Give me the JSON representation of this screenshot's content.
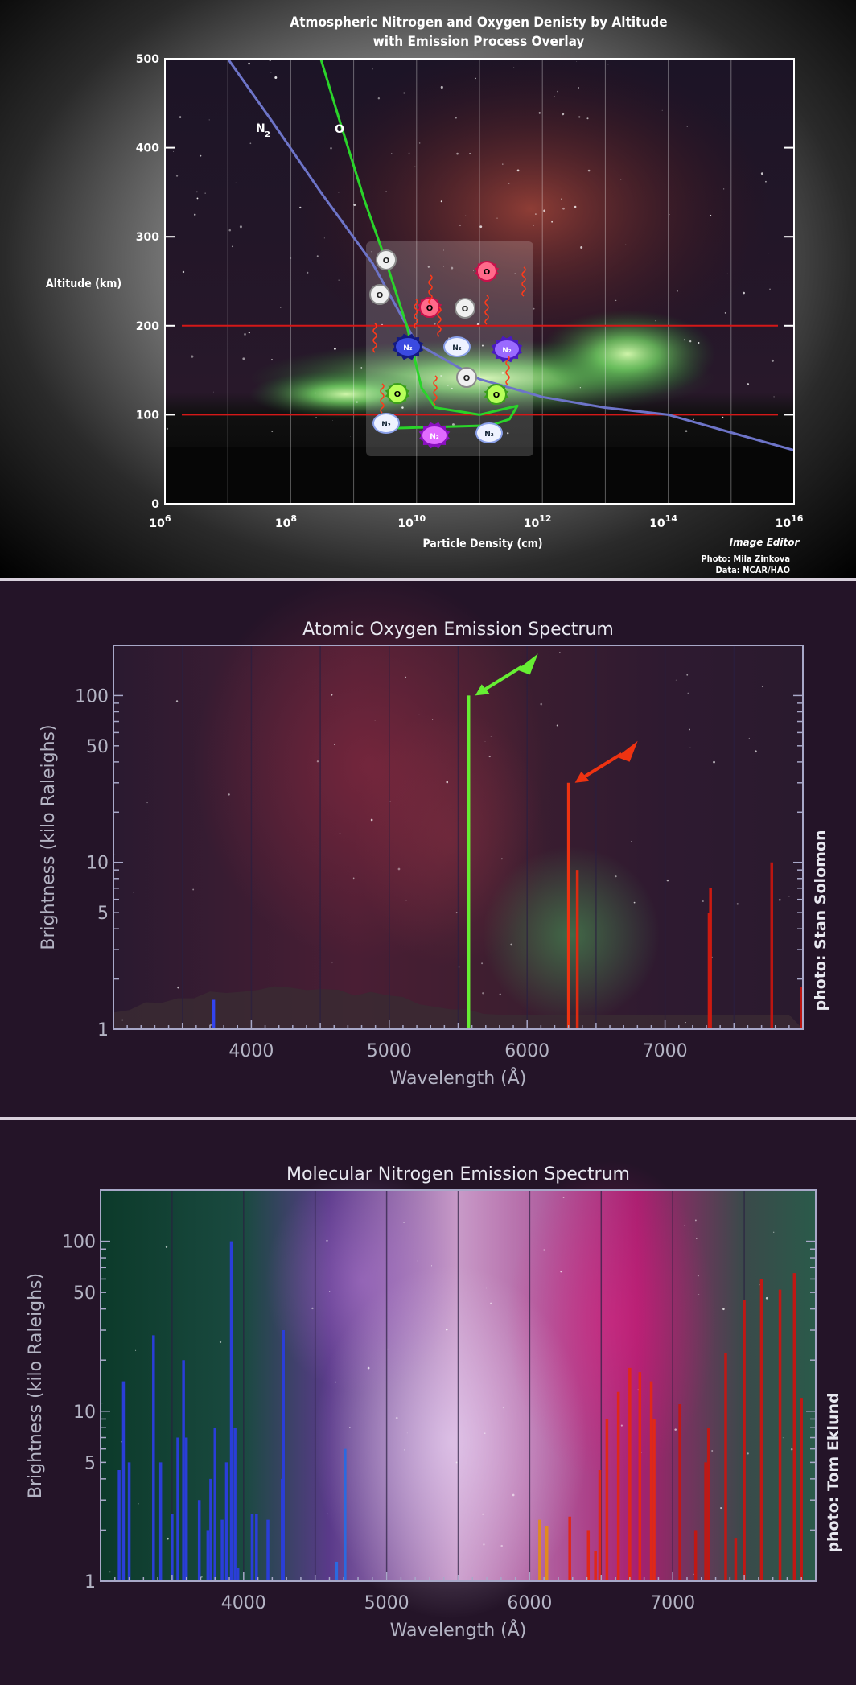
{
  "chart_data": [
    {
      "type": "line",
      "title": "Atmospheric Nitrogen and Oxygen Denisty by Altitude",
      "subtitle": "with Emission Process Overlay",
      "xlabel": "Particle Density (cm)",
      "ylabel": "Altitude (km)",
      "x_scale": "log",
      "xlim": [
        1000000.0,
        1e+16
      ],
      "ylim": [
        0,
        500
      ],
      "x_ticks": [
        {
          "base": "10",
          "exp": "6"
        },
        {
          "base": "10",
          "exp": "8"
        },
        {
          "base": "10",
          "exp": "10"
        },
        {
          "base": "10",
          "exp": "12"
        },
        {
          "base": "10",
          "exp": "14"
        },
        {
          "base": "10",
          "exp": "16"
        }
      ],
      "y_ticks": [
        "0",
        "100",
        "200",
        "300",
        "400",
        "500"
      ],
      "grid": true,
      "reference_lines_y": [
        100,
        200
      ],
      "series": [
        {
          "name": "N2",
          "color": "#6d74c8",
          "points": [
            [
              10000000.0,
              500
            ],
            [
              50000000.0,
              430
            ],
            [
              300000000.0,
              350
            ],
            [
              2000000000.0,
              270
            ],
            [
              10000000000.0,
              180
            ],
            [
              100000000000.0,
              140
            ],
            [
              1000000000000.0,
              120
            ],
            [
              10000000000000.0,
              108
            ],
            [
              100000000000000.0,
              100
            ],
            [
              1000000000000000.0,
              80
            ],
            [
              1e+16,
              60
            ]
          ]
        },
        {
          "name": "O",
          "color": "#2ad42a",
          "points": [
            [
              300000000.0,
              500
            ],
            [
              600000000.0,
              430
            ],
            [
              1500000000.0,
              340
            ],
            [
              3000000000.0,
              280
            ],
            [
              7000000000.0,
              200
            ],
            [
              12000000000.0,
              130
            ],
            [
              20000000000.0,
              108
            ],
            [
              100000000000.0,
              100
            ],
            [
              400000000000.0,
              110
            ],
            [
              300000000000.0,
              95
            ],
            [
              150000000000.0,
              88
            ],
            [
              5000000000.0,
              85
            ]
          ]
        }
      ],
      "overlay_particles": [
        "O",
        "O",
        "O",
        "O",
        "O",
        "O",
        "O",
        "N₂",
        "N₂",
        "N₂",
        "N₂",
        "N₂",
        "N₂"
      ],
      "credits": [
        "Photo: Mila Zinkova",
        "Data: NCAR/HAO"
      ],
      "signature": "Image Editor"
    },
    {
      "type": "bar",
      "title": "Atomic Oxygen Emission Spectrum",
      "xlabel": "Wavelength (Å)",
      "ylabel": "Brightness (kilo Raleighs)",
      "y_scale": "log",
      "xlim": [
        3000,
        8000
      ],
      "ylim": [
        1,
        200
      ],
      "x_ticks": [
        "4000",
        "5000",
        "6000",
        "7000"
      ],
      "y_ticks": [
        "1",
        "5",
        "10",
        "50",
        "100"
      ],
      "grid": true,
      "credit": "photo: Stan Solomon",
      "lines": [
        {
          "x": 3727,
          "y": 1.5,
          "color": "#3344ee"
        },
        {
          "x": 5577,
          "y": 100,
          "color": "#66ee33",
          "arrow": true
        },
        {
          "x": 6300,
          "y": 30,
          "color": "#ee3311",
          "arrow": true
        },
        {
          "x": 6364,
          "y": 9,
          "color": "#dd2a11"
        },
        {
          "x": 7320,
          "y": 5,
          "color": "#cc1a11"
        },
        {
          "x": 7330,
          "y": 7,
          "color": "#cc1a11"
        },
        {
          "x": 7774,
          "y": 10,
          "color": "#bb1511"
        },
        {
          "x": 7990,
          "y": 1.8,
          "color": "#bb1511"
        }
      ]
    },
    {
      "type": "bar",
      "title": "Molecular Nitrogen Emission Spectrum",
      "xlabel": "Wavelength (Å)",
      "ylabel": "Brightness (kilo Raleighs)",
      "y_scale": "log",
      "xlim": [
        3000,
        8000
      ],
      "ylim": [
        1,
        200
      ],
      "x_ticks": [
        "4000",
        "5000",
        "6000",
        "7000"
      ],
      "y_ticks": [
        "1",
        "5",
        "10",
        "50",
        "100"
      ],
      "grid": true,
      "credit": "photo: Tom Eklund",
      "lines": [
        {
          "x": 3130,
          "y": 4.5,
          "color": "#2a3ed8"
        },
        {
          "x": 3160,
          "y": 15,
          "color": "#2a3ed8"
        },
        {
          "x": 3200,
          "y": 5,
          "color": "#2a3ed8"
        },
        {
          "x": 3370,
          "y": 28,
          "color": "#2a3ed8"
        },
        {
          "x": 3420,
          "y": 5,
          "color": "#2a3ed8"
        },
        {
          "x": 3500,
          "y": 2.5,
          "color": "#2a3ed8"
        },
        {
          "x": 3540,
          "y": 7,
          "color": "#2a3ed8"
        },
        {
          "x": 3580,
          "y": 20,
          "color": "#2a3ed8"
        },
        {
          "x": 3600,
          "y": 7,
          "color": "#2a3ed8"
        },
        {
          "x": 3690,
          "y": 3,
          "color": "#2a3ed8"
        },
        {
          "x": 3750,
          "y": 2,
          "color": "#2a3ed8"
        },
        {
          "x": 3770,
          "y": 4,
          "color": "#2a3ed8"
        },
        {
          "x": 3800,
          "y": 8,
          "color": "#2a3ed8"
        },
        {
          "x": 3850,
          "y": 2.3,
          "color": "#2a3ed8"
        },
        {
          "x": 3880,
          "y": 5,
          "color": "#2a3ed8"
        },
        {
          "x": 3914,
          "y": 100,
          "color": "#2a3ed8"
        },
        {
          "x": 3940,
          "y": 8,
          "color": "#2a3ed8"
        },
        {
          "x": 3960,
          "y": 1.2,
          "color": "#2a3ed8"
        },
        {
          "x": 4060,
          "y": 2.5,
          "color": "#2a3ed8"
        },
        {
          "x": 4090,
          "y": 2.5,
          "color": "#2a3ed8"
        },
        {
          "x": 4170,
          "y": 2.3,
          "color": "#2a3ed8"
        },
        {
          "x": 4270,
          "y": 4,
          "color": "#2a3ed8"
        },
        {
          "x": 4278,
          "y": 30,
          "color": "#2a3ed8"
        },
        {
          "x": 4650,
          "y": 1.3,
          "color": "#2a6ae0"
        },
        {
          "x": 4709,
          "y": 6,
          "color": "#2a6ae0"
        },
        {
          "x": 6070,
          "y": 2.3,
          "color": "#e08a20"
        },
        {
          "x": 6120,
          "y": 2.1,
          "color": "#e08a20"
        },
        {
          "x": 6280,
          "y": 2.4,
          "color": "#e02818"
        },
        {
          "x": 6410,
          "y": 2,
          "color": "#e02818"
        },
        {
          "x": 6460,
          "y": 1.5,
          "color": "#e02818"
        },
        {
          "x": 6490,
          "y": 4.5,
          "color": "#e02818"
        },
        {
          "x": 6540,
          "y": 9,
          "color": "#e02818"
        },
        {
          "x": 6620,
          "y": 13,
          "color": "#e02818"
        },
        {
          "x": 6700,
          "y": 18,
          "color": "#e02818"
        },
        {
          "x": 6770,
          "y": 17,
          "color": "#e02818"
        },
        {
          "x": 6850,
          "y": 15,
          "color": "#e02818"
        },
        {
          "x": 6870,
          "y": 9,
          "color": "#e02818"
        },
        {
          "x": 7050,
          "y": 11,
          "color": "#c01814"
        },
        {
          "x": 7160,
          "y": 2,
          "color": "#c01814"
        },
        {
          "x": 7230,
          "y": 5,
          "color": "#c01814"
        },
        {
          "x": 7250,
          "y": 8,
          "color": "#c01814"
        },
        {
          "x": 7370,
          "y": 22,
          "color": "#c01814"
        },
        {
          "x": 7440,
          "y": 1.8,
          "color": "#c01814"
        },
        {
          "x": 7500,
          "y": 45,
          "color": "#c01814"
        },
        {
          "x": 7620,
          "y": 60,
          "color": "#c01814"
        },
        {
          "x": 7750,
          "y": 52,
          "color": "#c01814"
        },
        {
          "x": 7850,
          "y": 65,
          "color": "#c01814"
        },
        {
          "x": 7900,
          "y": 12,
          "color": "#c01814"
        }
      ]
    }
  ]
}
